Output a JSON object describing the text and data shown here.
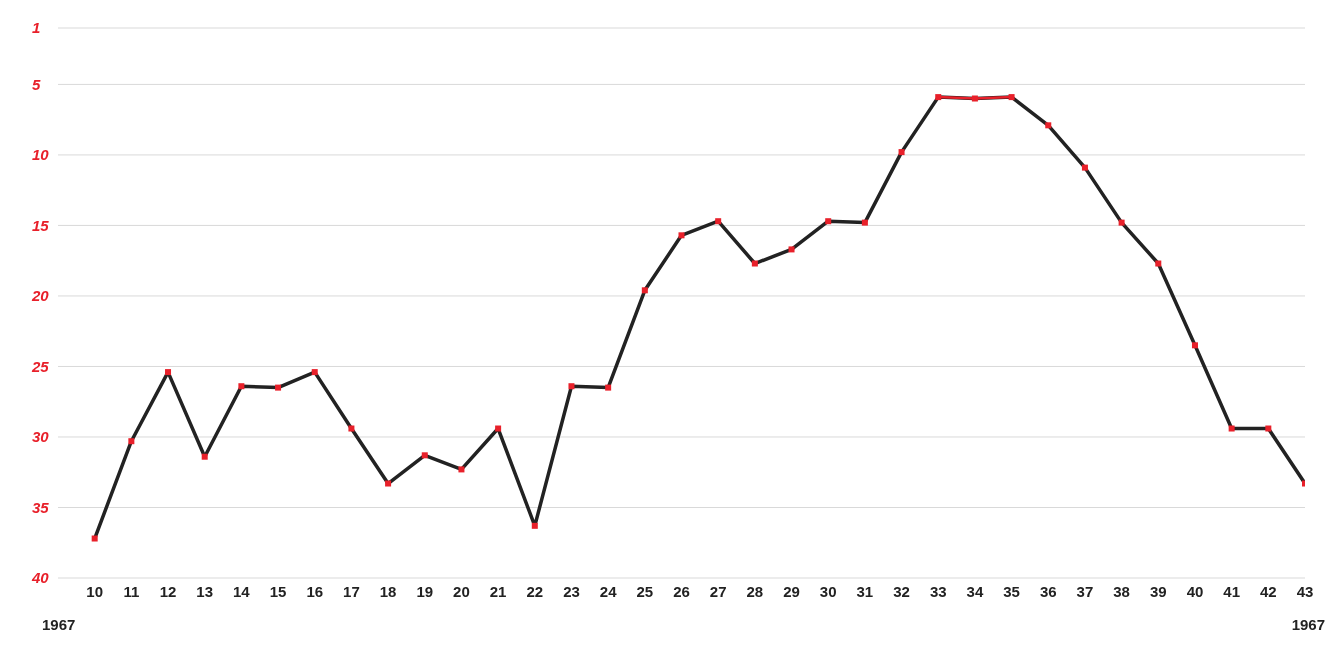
{
  "chart_data": {
    "type": "line",
    "categories": [
      "10",
      "11",
      "12",
      "13",
      "14",
      "15",
      "16",
      "17",
      "18",
      "19",
      "20",
      "21",
      "22",
      "23",
      "24",
      "25",
      "26",
      "27",
      "28",
      "29",
      "30",
      "31",
      "32",
      "33",
      "34",
      "35",
      "36",
      "37",
      "38",
      "39",
      "40",
      "41",
      "42",
      "43"
    ],
    "series": [
      {
        "color": "#222222",
        "marker": "none",
        "values": [
          37.2,
          30.3,
          25.4,
          31.4,
          26.4,
          26.5,
          25.4,
          29.4,
          33.3,
          31.3,
          32.3,
          29.4,
          36.3,
          26.4,
          26.5,
          19.6,
          15.7,
          14.7,
          17.7,
          16.7,
          14.7,
          14.8,
          9.8,
          5.9,
          6.0,
          5.9,
          7.9,
          10.9,
          14.8,
          17.7,
          23.5,
          29.4,
          29.4,
          33.3
        ]
      },
      {
        "color": "#e8202a",
        "marker": "none",
        "values": [
          null,
          null,
          null,
          null,
          null,
          null,
          null,
          null,
          null,
          null,
          null,
          null,
          null,
          null,
          null,
          null,
          null,
          null,
          null,
          null,
          null,
          null,
          null,
          5.9,
          6.0,
          5.9,
          null,
          null,
          null,
          null,
          null,
          null,
          null,
          null
        ]
      },
      {
        "type": "scatter",
        "color": "#e8202a",
        "marker": "square",
        "values": [
          37.2,
          30.3,
          25.4,
          31.4,
          26.4,
          26.5,
          25.4,
          29.4,
          33.3,
          31.3,
          32.3,
          29.4,
          36.3,
          26.4,
          26.5,
          19.6,
          15.7,
          14.7,
          17.7,
          16.7,
          14.7,
          14.8,
          9.8,
          5.9,
          6.0,
          5.9,
          7.9,
          10.9,
          14.8,
          17.7,
          23.5,
          29.4,
          29.4,
          33.3
        ]
      }
    ],
    "ylim": [
      40,
      1
    ],
    "yticks": [
      1,
      5,
      10,
      15,
      20,
      25,
      30,
      35,
      40
    ],
    "grid": "y",
    "annotations": [
      "1967",
      "1967"
    ]
  }
}
